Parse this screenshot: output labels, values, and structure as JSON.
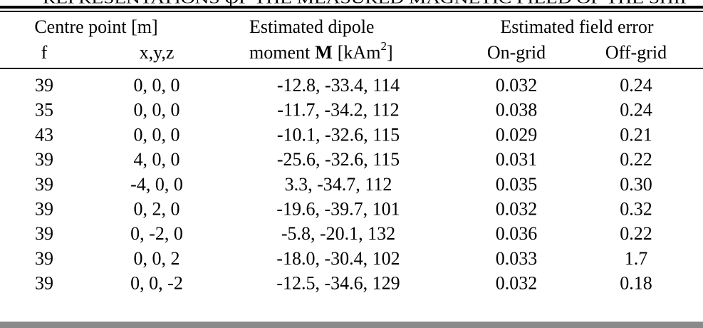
{
  "caption": "REPRESENTATIONS OF THE MEASURED MAGNETIC FIELD OF THE SHIP",
  "header": {
    "group1": "Centre point [m]",
    "group2_line1": "Estimated dipole",
    "group3": "Estimated field error",
    "col_f": "f",
    "col_xyz": "x,y,z",
    "moment_line2": {
      "text": "moment",
      "bold": "M",
      "unit": "[kAm",
      "sup": "2",
      "close": "]"
    },
    "col_on": "On-grid",
    "col_off": "Off-grid"
  },
  "table": {
    "rows": [
      [
        "39",
        "0, 0, 0",
        "-12.8, -33.4, 114",
        "0.032",
        "0.24"
      ],
      [
        "35",
        "0, 0, 0",
        "-11.7, -34.2, 112",
        "0.038",
        "0.24"
      ],
      [
        "43",
        "0, 0, 0",
        "-10.1, -32.6, 115",
        "0.029",
        "0.21"
      ],
      [
        "39",
        "4, 0, 0",
        "-25.6, -32.6, 115",
        "0.031",
        "0.22"
      ],
      [
        "39",
        "-4, 0, 0",
        "3.3, -34.7, 112",
        "0.035",
        "0.30"
      ],
      [
        "39",
        "0, 2, 0",
        "-19.6, -39.7, 101",
        "0.032",
        "0.32"
      ],
      [
        "39",
        "0, -2, 0",
        "-5.8, -20.1, 132",
        "0.036",
        "0.22"
      ],
      [
        "39",
        "0, 0, 2",
        "-18.0, -30.4, 102",
        "0.033",
        "1.7"
      ],
      [
        "39",
        "0, 0, -2",
        "-12.5, -34.6, 129",
        "0.032",
        "0.18"
      ]
    ]
  }
}
